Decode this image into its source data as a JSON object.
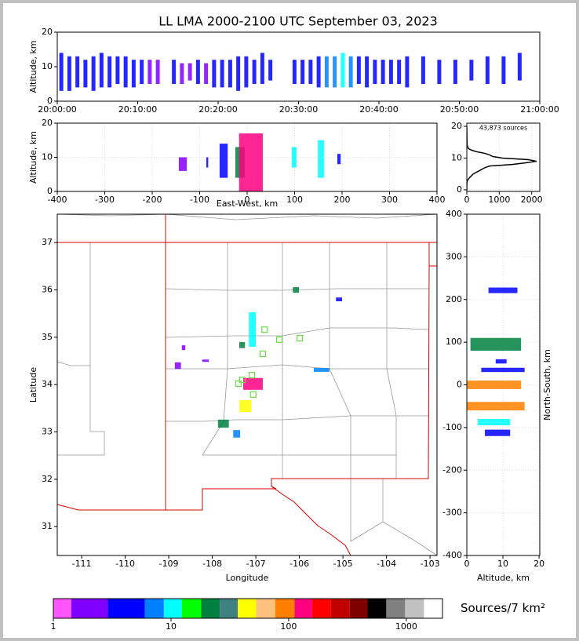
{
  "chart_data": [
    {
      "type": "time-columns",
      "title": "LL LMA 2000-2100 UTC September 03, 2023",
      "ylabel": "Altitude, km",
      "xlim": [
        0,
        60
      ],
      "xticks": [
        {
          "value": 0,
          "label": "20:00:00"
        },
        {
          "value": 10,
          "label": "20:10:00"
        },
        {
          "value": 20,
          "label": "20:20:00"
        },
        {
          "value": 30,
          "label": "20:30:00"
        },
        {
          "value": 40,
          "label": "20:40:00"
        },
        {
          "value": 50,
          "label": "20:50:00"
        },
        {
          "value": 60,
          "label": "21:00:00"
        }
      ],
      "ylim": [
        0,
        20
      ],
      "yticks": [
        0,
        10,
        20
      ],
      "x": [
        0.5,
        1.5,
        2.5,
        3.5,
        4.5,
        5.5,
        6.5,
        7.5,
        8.5,
        9.5,
        10.5,
        11.5,
        12.5,
        14.5,
        15.5,
        16.5,
        17.5,
        18.5,
        19.5,
        20.5,
        21.5,
        22.5,
        23.5,
        24.5,
        25.5,
        26.5,
        29.5,
        30.5,
        31.5,
        32.5,
        33.5,
        34.5,
        35.5,
        36.5,
        37.5,
        38.5,
        39.5,
        40.5,
        41.5,
        42.5,
        43.5,
        45.5,
        47.5,
        49.5,
        51.5,
        53.5,
        55.5,
        57.5
      ],
      "low": [
        3,
        3,
        4,
        4,
        3,
        4,
        4,
        5,
        4,
        4,
        5,
        5,
        5,
        5,
        5,
        6,
        5,
        5,
        4,
        4,
        4,
        3,
        4,
        5,
        5,
        6,
        5,
        5,
        5,
        4,
        4,
        4,
        4,
        4,
        5,
        4,
        5,
        5,
        5,
        5,
        4,
        5,
        5,
        5,
        6,
        5,
        5,
        6
      ],
      "high": [
        14,
        13,
        13,
        12,
        13,
        14,
        13,
        13,
        13,
        12,
        12,
        12,
        12,
        12,
        11,
        11,
        12,
        11,
        12,
        12,
        12,
        13,
        13,
        12,
        14,
        12,
        12,
        12,
        12,
        13,
        13,
        13,
        14,
        13,
        13,
        13,
        12,
        12,
        12,
        12,
        13,
        13,
        12,
        12,
        12,
        13,
        13,
        14
      ],
      "density": [
        5,
        4,
        4,
        3,
        3,
        5,
        4,
        4,
        3,
        3,
        3,
        2,
        2,
        3,
        2,
        2,
        3,
        2,
        3,
        3,
        4,
        4,
        5,
        3,
        4,
        3,
        3,
        3,
        3,
        4,
        6,
        8,
        10,
        6,
        5,
        4,
        3,
        3,
        3,
        3,
        3,
        3,
        3,
        3,
        3,
        3,
        3,
        3
      ]
    },
    {
      "type": "clusters",
      "xlabel": "East-West, km",
      "ylabel": "Altitude, km",
      "grid": true,
      "xlim": [
        -400,
        400
      ],
      "xticks": [
        -400,
        -300,
        -200,
        -100,
        0,
        100,
        200,
        300,
        400
      ],
      "ylim": [
        0,
        20
      ],
      "yticks": [
        0,
        10,
        20
      ],
      "x0": [
        -144,
        -86,
        -58,
        -25,
        -17,
        94,
        149,
        190
      ],
      "x1": [
        -127,
        -82,
        -41,
        -5,
        33,
        104,
        162,
        197
      ],
      "y0": [
        6,
        7,
        4,
        4,
        0,
        7,
        4,
        8
      ],
      "y1": [
        10,
        10,
        14,
        13,
        17,
        13,
        15,
        11
      ],
      "density": [
        2,
        3,
        5,
        20,
        150,
        10,
        10,
        3
      ]
    },
    {
      "type": "line",
      "annotation": "43,873 sources",
      "grid": true,
      "color": "#000000",
      "xlim": [
        0,
        2250
      ],
      "xticks": [
        0,
        1000,
        2000
      ],
      "ylim": [
        -0.5,
        21
      ],
      "yticks": [
        0,
        10,
        20
      ],
      "x": [
        0,
        0,
        0,
        20,
        100,
        200,
        380,
        560,
        700,
        1400,
        1800,
        2150,
        1900,
        1100,
        800,
        700,
        550,
        300,
        150,
        50,
        10,
        5,
        2,
        0
      ],
      "y": [
        0,
        1,
        2,
        3,
        4,
        5,
        6,
        7,
        7.5,
        8,
        8.5,
        9,
        9.5,
        10,
        10.5,
        11,
        11.5,
        12,
        12.5,
        13,
        14,
        16,
        18,
        20
      ]
    },
    {
      "type": "map",
      "xlabel": "Longitude",
      "ylabel": "Latitude",
      "xlim": [
        -111.56,
        -102.84
      ],
      "xticks": [
        -111,
        -110,
        -109,
        -108,
        -107,
        -106,
        -105,
        -104,
        -103
      ],
      "ylim": [
        30.39,
        37.6
      ],
      "yticks": [
        31,
        32,
        33,
        34,
        35,
        36,
        37
      ],
      "x0": [
        -107.29,
        -107.38,
        -107.16,
        -107.38,
        -107.87,
        -107.52,
        -106.15,
        -105.67,
        -105.16,
        -108.7,
        -108.86,
        -108.23
      ],
      "x1": [
        -106.84,
        -107.11,
        -107.0,
        -107.25,
        -107.62,
        -107.36,
        -106.01,
        -105.31,
        -105.02,
        -108.62,
        -108.72,
        -108.08
      ],
      "y0": [
        33.89,
        33.42,
        34.8,
        34.77,
        33.09,
        32.88,
        35.94,
        34.27,
        35.76,
        34.73,
        34.33,
        34.48
      ],
      "y1": [
        34.14,
        33.67,
        35.53,
        34.9,
        33.26,
        33.04,
        36.06,
        34.35,
        35.84,
        34.83,
        34.47,
        34.53
      ],
      "density": [
        150,
        50,
        10,
        20,
        20,
        8,
        20,
        8,
        3,
        2,
        2,
        2
      ],
      "stations": {
        "color": "#66dd44",
        "lon": [
          -106.8,
          -106.46,
          -105.99,
          -106.84,
          -107.09,
          -107.31,
          -107.4,
          -107.06
        ],
        "lat": [
          35.16,
          34.95,
          34.98,
          34.65,
          34.2,
          34.1,
          34.02,
          33.79
        ]
      }
    },
    {
      "type": "clusters",
      "xlabel": "Altitude, km",
      "ylabel": "North-South, km",
      "grid": true,
      "xlim": [
        0,
        20.2
      ],
      "xticks": [
        0,
        10,
        20
      ],
      "ylim": [
        -400,
        400
      ],
      "yticks": [
        -400,
        -300,
        -200,
        -100,
        0,
        100,
        200,
        300,
        400
      ],
      "x0": [
        6,
        1,
        4,
        0,
        0,
        3,
        5,
        8
      ],
      "x1": [
        14,
        15,
        16,
        15,
        16,
        12,
        12,
        11
      ],
      "y0": [
        215,
        80,
        30,
        -10,
        -60,
        -95,
        -120,
        50
      ],
      "y1": [
        228,
        110,
        40,
        10,
        -40,
        -80,
        -105,
        60
      ],
      "density": [
        5,
        20,
        5,
        80,
        80,
        10,
        5,
        3
      ]
    },
    {
      "type": "colorbar",
      "label": "Sources/7 km²",
      "log": true,
      "xlim": [
        1,
        2030
      ],
      "xticks": [
        1,
        10,
        100,
        1000
      ],
      "bins": [
        1,
        1.42,
        2.9,
        6,
        8.7,
        12.4,
        18,
        26,
        37,
        53,
        77,
        112,
        158,
        229,
        331,
        468,
        676,
        977,
        1413,
        2030
      ],
      "colors": [
        "#ff55ff",
        "#8000ff",
        "#0000ff",
        "#0080ff",
        "#00ffff",
        "#00ff00",
        "#008040",
        "#408080",
        "#ffff00",
        "#ffc080",
        "#ff8000",
        "#ff0080",
        "#ff0000",
        "#c00000",
        "#800000",
        "#000000",
        "#808080",
        "#c0c0c0",
        "#ffffff"
      ]
    }
  ]
}
